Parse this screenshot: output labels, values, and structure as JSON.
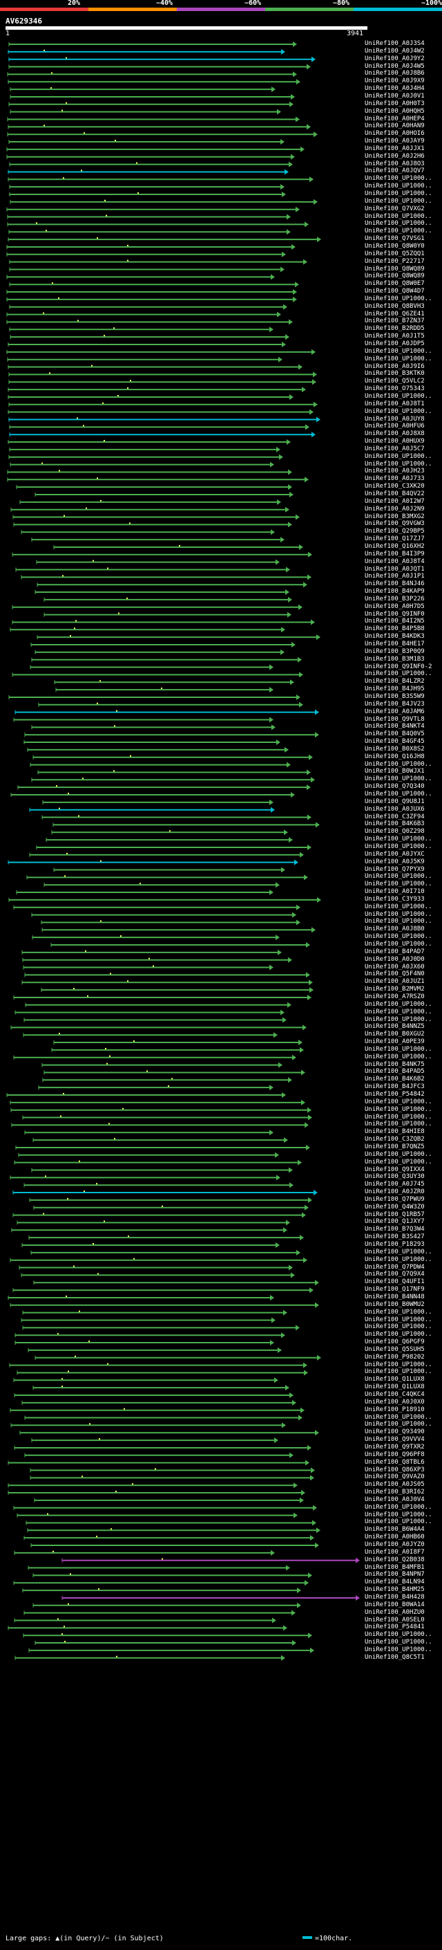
{
  "legend": {
    "labels": [
      "20%",
      "~40%",
      "~60%",
      "~80%",
      "~100%"
    ],
    "colors": [
      "#e53935",
      "#ff8f00",
      "#ab47bc",
      "#4caf50",
      "#00bcd4"
    ]
  },
  "query": {
    "title": "AV629346",
    "start": "1",
    "end": "3941"
  },
  "hits": [
    {
      "label": "UniRef100_A0J3S4",
      "color": "#4caf50"
    },
    {
      "label": "UniRef100_A0J4W2",
      "color": "#00bcd4"
    },
    {
      "label": "UniRef100_A0J9Y2",
      "color": "#00bcd4"
    },
    {
      "label": "UniRef100_A0J4W5",
      "color": "#4caf50"
    },
    {
      "label": "UniRef100_A0J8B6",
      "color": "#4caf50"
    },
    {
      "label": "UniRef100_A0J9X9",
      "color": "#4caf50"
    },
    {
      "label": "UniRef100_A0J4H4",
      "color": "#4caf50"
    },
    {
      "label": "UniRef100_A0J0V1",
      "color": "#4caf50"
    },
    {
      "label": "UniRef100_A0H0T3",
      "color": "#4caf50"
    },
    {
      "label": "UniRef100_A0HQH5",
      "color": "#4caf50"
    },
    {
      "label": "UniRef100_A0HEP4",
      "color": "#4caf50"
    },
    {
      "label": "UniRef100_A0HAN9",
      "color": "#4caf50"
    },
    {
      "label": "UniRef100_A0HOI6",
      "color": "#4caf50"
    },
    {
      "label": "UniRef100_A0JAY9",
      "color": "#4caf50"
    },
    {
      "label": "UniRef100_A0JJX1",
      "color": "#4caf50"
    },
    {
      "label": "UniRef100_A0J2H6",
      "color": "#4caf50"
    },
    {
      "label": "UniRef100_A0J8O3",
      "color": "#4caf50"
    },
    {
      "label": "UniRef100_A0JQV7",
      "color": "#00bcd4"
    },
    {
      "label": "UniRef100_UP1000..",
      "color": "#4caf50"
    },
    {
      "label": "UniRef100_UP1000..",
      "color": "#4caf50"
    },
    {
      "label": "UniRef100_UP1000..",
      "color": "#4caf50"
    },
    {
      "label": "UniRef100_UP1000..",
      "color": "#4caf50"
    },
    {
      "label": "UniRef100_Q7VXG2",
      "color": "#4caf50"
    },
    {
      "label": "UniRef100_UP1000..",
      "color": "#4caf50"
    },
    {
      "label": "UniRef100_UP1000..",
      "color": "#4caf50"
    },
    {
      "label": "UniRef100_UP1000..",
      "color": "#4caf50"
    },
    {
      "label": "UniRef100_Q7VSG1",
      "color": "#4caf50"
    },
    {
      "label": "UniRef100_Q8W0Y0",
      "color": "#4caf50"
    },
    {
      "label": "UniRef100_Q5ZQQ1",
      "color": "#4caf50"
    },
    {
      "label": "UniRef100_P22717",
      "color": "#4caf50"
    },
    {
      "label": "UniRef100_Q8WQ89",
      "color": "#4caf50"
    },
    {
      "label": "UniRef100_Q8WQ89",
      "color": "#4caf50"
    },
    {
      "label": "UniRef100_Q8W0E7",
      "color": "#4caf50"
    },
    {
      "label": "UniRef100_Q8W4D7",
      "color": "#4caf50"
    },
    {
      "label": "UniRef100_UP1000..",
      "color": "#4caf50"
    },
    {
      "label": "UniRef100_Q8BVH3",
      "color": "#4caf50"
    },
    {
      "label": "UniRef100_Q6ZE41",
      "color": "#4caf50"
    },
    {
      "label": "UniRef100_B7ZN37",
      "color": "#4caf50"
    },
    {
      "label": "UniRef100_B2RDD5",
      "color": "#4caf50"
    },
    {
      "label": "UniRef100_A0J1T5",
      "color": "#4caf50"
    },
    {
      "label": "UniRef100_A0JDP5",
      "color": "#4caf50"
    },
    {
      "label": "UniRef100_UP1000..",
      "color": "#4caf50"
    },
    {
      "label": "UniRef100_UP1000..",
      "color": "#4caf50"
    },
    {
      "label": "UniRef100_A0J9I6",
      "color": "#4caf50"
    },
    {
      "label": "UniRef100_B3KTK0",
      "color": "#4caf50"
    },
    {
      "label": "UniRef100_Q5VLC2",
      "color": "#4caf50"
    },
    {
      "label": "UniRef100_O75343",
      "color": "#4caf50"
    },
    {
      "label": "UniRef100_UP1000..",
      "color": "#4caf50"
    },
    {
      "label": "UniRef100_A0J8T1",
      "color": "#4caf50"
    },
    {
      "label": "UniRef100_UP1000..",
      "color": "#4caf50"
    },
    {
      "label": "UniRef100_A0JUY8",
      "color": "#00bcd4"
    },
    {
      "label": "UniRef100_A0HFU6",
      "color": "#4caf50"
    },
    {
      "label": "UniRef100_A0J8X8",
      "color": "#00bcd4"
    },
    {
      "label": "UniRef100_A0HUX9",
      "color": "#4caf50"
    },
    {
      "label": "UniRef100_A0J5C7",
      "color": "#4caf50"
    },
    {
      "label": "UniRef100_UP1000..",
      "color": "#4caf50"
    },
    {
      "label": "UniRef100_UP1000..",
      "color": "#4caf50"
    },
    {
      "label": "UniRef100_A0JH23",
      "color": "#4caf50"
    },
    {
      "label": "UniRef100_A0J733",
      "color": "#4caf50"
    },
    {
      "label": "UniRef100_C3XK20",
      "color": "#4caf50"
    },
    {
      "label": "UniRef100_B4QV22",
      "color": "#4caf50"
    },
    {
      "label": "UniRef100_A0I2W7",
      "color": "#4caf50"
    },
    {
      "label": "UniRef100_A0J2N9",
      "color": "#4caf50"
    },
    {
      "label": "UniRef100_B3MXG2",
      "color": "#4caf50"
    },
    {
      "label": "UniRef100_Q9VGW3",
      "color": "#4caf50"
    },
    {
      "label": "UniRef100_Q29BP5",
      "color": "#4caf50"
    },
    {
      "label": "UniRef100_Q17ZJ7",
      "color": "#4caf50"
    },
    {
      "label": "UniRef100_Q16XH2",
      "color": "#4caf50"
    },
    {
      "label": "UniRef100_B4I3P9",
      "color": "#4caf50"
    },
    {
      "label": "UniRef100_A0J8T4",
      "color": "#4caf50"
    },
    {
      "label": "UniRef100_A0JQT1",
      "color": "#4caf50"
    },
    {
      "label": "UniRef100_A0J1P1",
      "color": "#4caf50"
    },
    {
      "label": "UniRef100_B4NJ46",
      "color": "#4caf50"
    },
    {
      "label": "UniRef100_B4KAP9",
      "color": "#4caf50"
    },
    {
      "label": "UniRef100_B3P226",
      "color": "#4caf50"
    },
    {
      "label": "UniRef100_A0H7D5",
      "color": "#4caf50"
    },
    {
      "label": "UniRef100_Q9INF0",
      "color": "#4caf50"
    },
    {
      "label": "UniRef100_B4I2N5",
      "color": "#4caf50"
    },
    {
      "label": "UniRef100_B4P5B8",
      "color": "#4caf50"
    },
    {
      "label": "UniRef100_B4KDK3",
      "color": "#4caf50"
    },
    {
      "label": "UniRef100_B4HE17",
      "color": "#4caf50"
    },
    {
      "label": "UniRef100_B3P0Q9",
      "color": "#4caf50"
    },
    {
      "label": "UniRef100_B3M1B3",
      "color": "#4caf50"
    },
    {
      "label": "UniRef100_Q9INF0-2",
      "color": "#4caf50"
    },
    {
      "label": "UniRef100_UP1000..",
      "color": "#4caf50"
    },
    {
      "label": "UniRef100_B4LZR2",
      "color": "#4caf50"
    },
    {
      "label": "UniRef100_B4JH95",
      "color": "#4caf50"
    },
    {
      "label": "UniRef100_B3S5W9",
      "color": "#4caf50"
    },
    {
      "label": "UniRef100_B4JV23",
      "color": "#4caf50"
    },
    {
      "label": "UniRef100_A0JAM6",
      "color": "#00bcd4"
    },
    {
      "label": "UniRef100_Q9VTL8",
      "color": "#4caf50"
    },
    {
      "label": "UniRef100_B4NKT4",
      "color": "#4caf50"
    },
    {
      "label": "UniRef100_B4Q0V5",
      "color": "#4caf50"
    },
    {
      "label": "UniRef100_B4GF45",
      "color": "#4caf50"
    },
    {
      "label": "UniRef100_B0X8S2",
      "color": "#4caf50"
    },
    {
      "label": "UniRef100_Q16JH8",
      "color": "#4caf50"
    },
    {
      "label": "UniRef100_UP1000..",
      "color": "#4caf50"
    },
    {
      "label": "UniRef100_B0WJX1",
      "color": "#4caf50"
    },
    {
      "label": "UniRef100_UP1000..",
      "color": "#4caf50"
    },
    {
      "label": "UniRef100_Q7Q340",
      "color": "#4caf50"
    },
    {
      "label": "UniRef100_UP1000..",
      "color": "#4caf50"
    },
    {
      "label": "UniRef100_Q9U8J1",
      "color": "#4caf50"
    },
    {
      "label": "UniRef100_A0JUX6",
      "color": "#00bcd4"
    },
    {
      "label": "UniRef100_C3ZF94",
      "color": "#4caf50"
    },
    {
      "label": "UniRef100_B4K6B3",
      "color": "#4caf50"
    },
    {
      "label": "UniRef100_Q0Z298",
      "color": "#4caf50"
    },
    {
      "label": "UniRef100_UP1000..",
      "color": "#4caf50"
    },
    {
      "label": "UniRef100_UP1000..",
      "color": "#4caf50"
    },
    {
      "label": "UniRef100_A0JYXC",
      "color": "#4caf50"
    },
    {
      "label": "UniRef100_A0J5K9",
      "color": "#00bcd4"
    },
    {
      "label": "UniRef100_Q7PYX9",
      "color": "#4caf50"
    },
    {
      "label": "UniRef100_UP1000..",
      "color": "#4caf50"
    },
    {
      "label": "UniRef100_UP1000..",
      "color": "#4caf50"
    },
    {
      "label": "UniRef100_A0I710",
      "color": "#4caf50"
    },
    {
      "label": "UniRef100_C3Y933",
      "color": "#4caf50"
    },
    {
      "label": "UniRef100_UP1000..",
      "color": "#4caf50"
    },
    {
      "label": "UniRef100_UP1000..",
      "color": "#4caf50"
    },
    {
      "label": "UniRef100_UP1000..",
      "color": "#4caf50"
    },
    {
      "label": "UniRef100_A0J8B0",
      "color": "#4caf50"
    },
    {
      "label": "UniRef100_UP1000..",
      "color": "#4caf50"
    },
    {
      "label": "UniRef100_UP1000..",
      "color": "#4caf50"
    },
    {
      "label": "UniRef100_B4PAD7",
      "color": "#4caf50"
    },
    {
      "label": "UniRef100_A0J0D0",
      "color": "#4caf50"
    },
    {
      "label": "UniRef100_A0JX60",
      "color": "#4caf50"
    },
    {
      "label": "UniRef100_Q5F4N0",
      "color": "#4caf50"
    },
    {
      "label": "UniRef100_A0JUZ1",
      "color": "#4caf50"
    },
    {
      "label": "UniRef100_B2MVM2",
      "color": "#4caf50"
    },
    {
      "label": "UniRef100_A7RSZ0",
      "color": "#4caf50"
    },
    {
      "label": "UniRef100_UP1000..",
      "color": "#4caf50"
    },
    {
      "label": "UniRef100_UP1000..",
      "color": "#4caf50"
    },
    {
      "label": "UniRef100_UP1000..",
      "color": "#4caf50"
    },
    {
      "label": "UniRef100_B4NNZ5",
      "color": "#4caf50"
    },
    {
      "label": "UniRef100_B0XGU2",
      "color": "#4caf50"
    },
    {
      "label": "UniRef100_A0PE39",
      "color": "#4caf50"
    },
    {
      "label": "UniRef100_UP1000..",
      "color": "#4caf50"
    },
    {
      "label": "UniRef100_UP1000..",
      "color": "#4caf50"
    },
    {
      "label": "UniRef100_B4NK75",
      "color": "#4caf50"
    },
    {
      "label": "UniRef100_B4PAD5",
      "color": "#4caf50"
    },
    {
      "label": "UniRef100_B4K6B2",
      "color": "#4caf50"
    },
    {
      "label": "UniRef100_B4JFC3",
      "color": "#4caf50"
    },
    {
      "label": "UniRef100_P54842",
      "color": "#4caf50"
    },
    {
      "label": "UniRef100_UP1000..",
      "color": "#4caf50"
    },
    {
      "label": "UniRef100_UP1000..",
      "color": "#4caf50"
    },
    {
      "label": "UniRef100_UP1000..",
      "color": "#4caf50"
    },
    {
      "label": "UniRef100_UP1000..",
      "color": "#4caf50"
    },
    {
      "label": "UniRef100_B4HIE8",
      "color": "#4caf50"
    },
    {
      "label": "UniRef100_C3ZQB2",
      "color": "#4caf50"
    },
    {
      "label": "UniRef100_B7QNZ5",
      "color": "#4caf50"
    },
    {
      "label": "UniRef100_UP1000..",
      "color": "#4caf50"
    },
    {
      "label": "UniRef100_UP1000..",
      "color": "#4caf50"
    },
    {
      "label": "UniRef100_Q9IXX4",
      "color": "#4caf50"
    },
    {
      "label": "UniRef100_Q3UY30",
      "color": "#4caf50"
    },
    {
      "label": "UniRef100_A0J745",
      "color": "#4caf50"
    },
    {
      "label": "UniRef100_A0JZR0",
      "color": "#00bcd4"
    },
    {
      "label": "UniRef100_Q7PWU9",
      "color": "#4caf50"
    },
    {
      "label": "UniRef100_Q4W3Z0",
      "color": "#4caf50"
    },
    {
      "label": "UniRef100_Q1RB57",
      "color": "#4caf50"
    },
    {
      "label": "UniRef100_Q1JXY7",
      "color": "#4caf50"
    },
    {
      "label": "UniRef100_B7Q3W4",
      "color": "#4caf50"
    },
    {
      "label": "UniRef100_B3S427",
      "color": "#4caf50"
    },
    {
      "label": "UniRef100_P18293",
      "color": "#4caf50"
    },
    {
      "label": "UniRef100_UP1000..",
      "color": "#4caf50"
    },
    {
      "label": "UniRef100_UP1000..",
      "color": "#4caf50"
    },
    {
      "label": "UniRef100_Q7PDW4",
      "color": "#4caf50"
    },
    {
      "label": "UniRef100_Q7Q9X4",
      "color": "#4caf50"
    },
    {
      "label": "UniRef100_Q4UFI1",
      "color": "#4caf50"
    },
    {
      "label": "UniRef100_Q17NF9",
      "color": "#4caf50"
    },
    {
      "label": "UniRef100_B4NN48",
      "color": "#4caf50"
    },
    {
      "label": "UniRef100_B0WMU2",
      "color": "#4caf50"
    },
    {
      "label": "UniRef100_UP1000..",
      "color": "#4caf50"
    },
    {
      "label": "UniRef100_UP1000..",
      "color": "#4caf50"
    },
    {
      "label": "UniRef100_UP1000..",
      "color": "#4caf50"
    },
    {
      "label": "UniRef100_UP1000..",
      "color": "#4caf50"
    },
    {
      "label": "UniRef100_Q6PGF9",
      "color": "#4caf50"
    },
    {
      "label": "UniRef100_Q5SUH5",
      "color": "#4caf50"
    },
    {
      "label": "UniRef100_P98202",
      "color": "#4caf50"
    },
    {
      "label": "UniRef100_UP1000..",
      "color": "#4caf50"
    },
    {
      "label": "UniRef100_UP1000..",
      "color": "#4caf50"
    },
    {
      "label": "UniRef100_Q1LUX8",
      "color": "#4caf50"
    },
    {
      "label": "UniRef100_Q1LUX8",
      "color": "#4caf50"
    },
    {
      "label": "UniRef100_C4QKC4",
      "color": "#4caf50"
    },
    {
      "label": "UniRef100_A0J0X0",
      "color": "#4caf50"
    },
    {
      "label": "UniRef100_P18910",
      "color": "#4caf50"
    },
    {
      "label": "UniRef100_UP1000..",
      "color": "#4caf50"
    },
    {
      "label": "UniRef100_UP1000..",
      "color": "#4caf50"
    },
    {
      "label": "UniRef100_Q93490",
      "color": "#4caf50"
    },
    {
      "label": "UniRef100_Q9VVV4",
      "color": "#4caf50"
    },
    {
      "label": "UniRef100_Q9TXR2",
      "color": "#4caf50"
    },
    {
      "label": "UniRef100_Q96PF8",
      "color": "#4caf50"
    },
    {
      "label": "UniRef100_Q8TBL6",
      "color": "#4caf50"
    },
    {
      "label": "UniRef100_Q86XP3",
      "color": "#4caf50"
    },
    {
      "label": "UniRef100_Q9VAZ0",
      "color": "#4caf50"
    },
    {
      "label": "UniRef100_A0JS05",
      "color": "#4caf50"
    },
    {
      "label": "UniRef100_B3RI62",
      "color": "#4caf50"
    },
    {
      "label": "UniRef100_A0J0V4",
      "color": "#4caf50"
    },
    {
      "label": "UniRef100_UP1000..",
      "color": "#4caf50"
    },
    {
      "label": "UniRef100_UP1000..",
      "color": "#4caf50"
    },
    {
      "label": "UniRef100_UP1000..",
      "color": "#4caf50"
    },
    {
      "label": "UniRef100_B6W4A4",
      "color": "#4caf50"
    },
    {
      "label": "UniRef100_A0HB60",
      "color": "#4caf50"
    },
    {
      "label": "UniRef100_A0JYZ0",
      "color": "#4caf50"
    },
    {
      "label": "UniRef100_A0I8F7",
      "color": "#4caf50"
    },
    {
      "label": "UniRef100_Q2B038",
      "color": "#ab47bc"
    },
    {
      "label": "UniRef100_B4MFB1",
      "color": "#4caf50"
    },
    {
      "label": "UniRef100_B4NPN7",
      "color": "#4caf50"
    },
    {
      "label": "UniRef100_B4LN94",
      "color": "#4caf50"
    },
    {
      "label": "UniRef100_B4HM25",
      "color": "#4caf50"
    },
    {
      "label": "UniRef100_B4H428",
      "color": "#ab47bc"
    },
    {
      "label": "UniRef100_B0WA14",
      "color": "#4caf50"
    },
    {
      "label": "UniRef100_A0HZU0",
      "color": "#4caf50"
    },
    {
      "label": "UniRef100_A0SEL0",
      "color": "#4caf50"
    },
    {
      "label": "UniRef100_P54841",
      "color": "#4caf50"
    },
    {
      "label": "UniRef100_UP1000..",
      "color": "#4caf50"
    },
    {
      "label": "UniRef100_UP1000..",
      "color": "#4caf50"
    },
    {
      "label": "UniRef100_UP1000..",
      "color": "#4caf50"
    },
    {
      "label": "UniRef100_Q8C5T1",
      "color": "#4caf50"
    }
  ],
  "footer": {
    "gaps_text": "Large gaps: ▲(in Query)/~ (in Subject)",
    "scale_text": "=100char."
  }
}
